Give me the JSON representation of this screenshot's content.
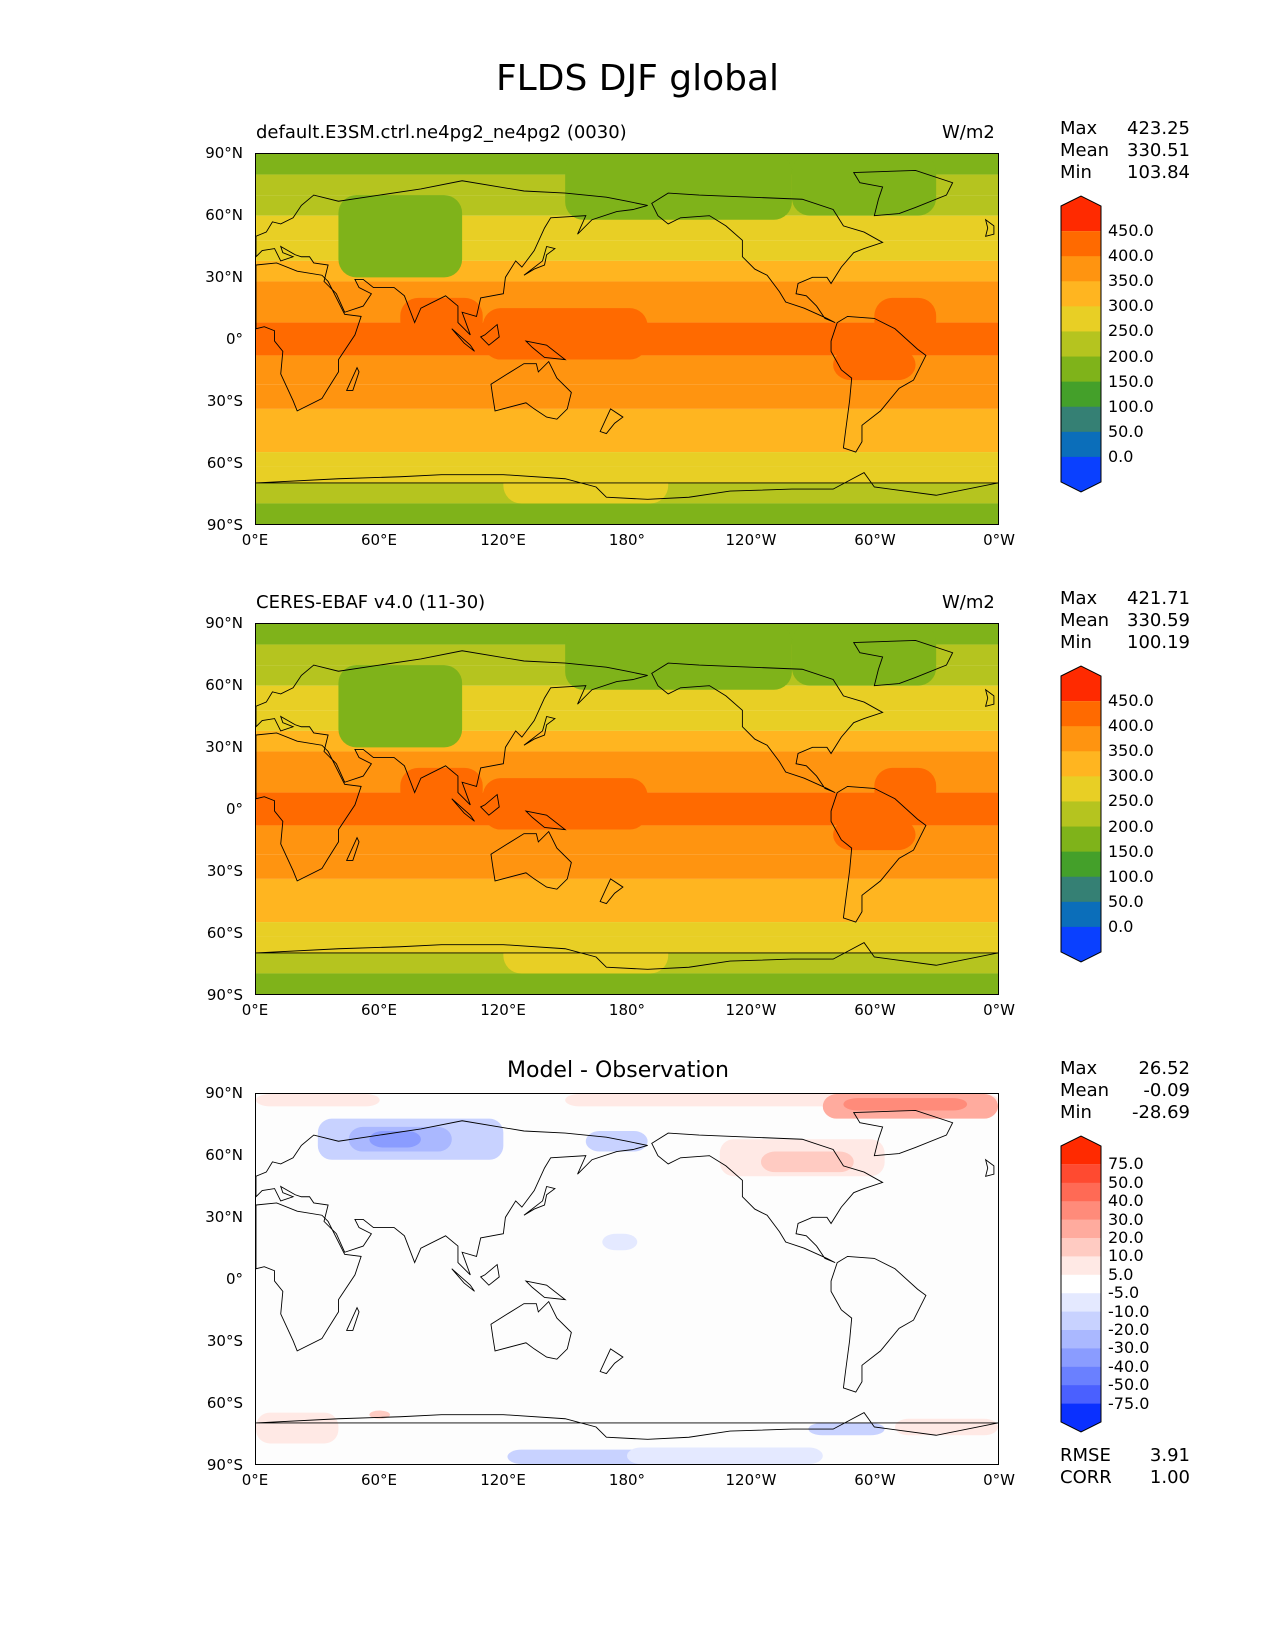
{
  "figure_title": "FLDS DJF global",
  "panels": [
    {
      "title": "default.E3SM.ctrl.ne4pg2_ne4pg2 (0030)",
      "units": "W/m2",
      "stats": {
        "max_label": "Max",
        "max": "423.25",
        "mean_label": "Mean",
        "mean": "330.51",
        "min_label": "Min",
        "min": "103.84"
      }
    },
    {
      "title": "CERES-EBAF v4.0 (11-30)",
      "units": "W/m2",
      "stats": {
        "max_label": "Max",
        "max": "421.71",
        "mean_label": "Mean",
        "mean": "330.59",
        "min_label": "Min",
        "min": "100.19"
      }
    },
    {
      "title": "Model - Observation",
      "units": "",
      "stats": {
        "max_label": "Max",
        "max": "26.52",
        "mean_label": "Mean",
        "mean": "-0.09",
        "min_label": "Min",
        "min": "-28.69"
      },
      "rmse_label": "RMSE",
      "rmse": "3.91",
      "corr_label": "CORR",
      "corr": "1.00"
    }
  ],
  "lat_ticks": [
    "90°N",
    "60°N",
    "30°N",
    "0°",
    "30°S",
    "60°S",
    "90°S"
  ],
  "lon_ticks": [
    "0°E",
    "60°E",
    "120°E",
    "180°",
    "120°W",
    "60°W",
    "0°W"
  ],
  "colorbar_abs": {
    "labels": [
      "450.0",
      "400.0",
      "350.0",
      "300.0",
      "250.0",
      "200.0",
      "150.0",
      "100.0",
      "50.0",
      "0.0"
    ],
    "colors": [
      "#ff2a00",
      "#ff6a00",
      "#ff9410",
      "#ffb520",
      "#e8cf25",
      "#b5c41f",
      "#7fb31a",
      "#44a02a",
      "#358074",
      "#0b6eba",
      "#0a40ff"
    ]
  },
  "colorbar_diff": {
    "labels": [
      "75.0",
      "50.0",
      "40.0",
      "30.0",
      "20.0",
      "10.0",
      "5.0",
      "-5.0",
      "-10.0",
      "-20.0",
      "-30.0",
      "-40.0",
      "-50.0",
      "-75.0"
    ],
    "colors": [
      "#ff2a00",
      "#ff4a30",
      "#ff6a55",
      "#ff8b7a",
      "#ffab9e",
      "#ffcbc2",
      "#ffe9e5",
      "#ffffff",
      "#e4e9ff",
      "#c8d2ff",
      "#aab8ff",
      "#8a9cff",
      "#6a80ff",
      "#4a60ff",
      "#0a30ff"
    ]
  },
  "chart_data": [
    {
      "type": "heatmap",
      "title": "default.E3SM.ctrl.ne4pg2_ne4pg2 (0030)",
      "units": "W/m2",
      "x_range": [
        0,
        360
      ],
      "y_range": [
        -90,
        90
      ],
      "levels": [
        0,
        50,
        100,
        150,
        200,
        250,
        300,
        350,
        400,
        450
      ],
      "max": 423.25,
      "mean": 330.51,
      "min": 103.84,
      "lat_band_values": [
        {
          "lat": 80,
          "value": 190
        },
        {
          "lat": 60,
          "value": 230
        },
        {
          "lat": 40,
          "value": 290
        },
        {
          "lat": 20,
          "value": 360
        },
        {
          "lat": 0,
          "value": 405
        },
        {
          "lat": -20,
          "value": 390
        },
        {
          "lat": -40,
          "value": 330
        },
        {
          "lat": -60,
          "value": 280
        },
        {
          "lat": -80,
          "value": 170
        }
      ]
    },
    {
      "type": "heatmap",
      "title": "CERES-EBAF v4.0 (11-30)",
      "units": "W/m2",
      "x_range": [
        0,
        360
      ],
      "y_range": [
        -90,
        90
      ],
      "levels": [
        0,
        50,
        100,
        150,
        200,
        250,
        300,
        350,
        400,
        450
      ],
      "max": 421.71,
      "mean": 330.59,
      "min": 100.19,
      "lat_band_values": [
        {
          "lat": 80,
          "value": 190
        },
        {
          "lat": 60,
          "value": 230
        },
        {
          "lat": 40,
          "value": 290
        },
        {
          "lat": 20,
          "value": 360
        },
        {
          "lat": 0,
          "value": 405
        },
        {
          "lat": -20,
          "value": 390
        },
        {
          "lat": -40,
          "value": 330
        },
        {
          "lat": -60,
          "value": 280
        },
        {
          "lat": -80,
          "value": 170
        }
      ]
    },
    {
      "type": "heatmap",
      "title": "Model - Observation",
      "x_range": [
        0,
        360
      ],
      "y_range": [
        -90,
        90
      ],
      "levels": [
        -75,
        -50,
        -40,
        -30,
        -20,
        -10,
        -5,
        5,
        10,
        20,
        30,
        40,
        50,
        75
      ],
      "max": 26.52,
      "mean": -0.09,
      "min": -28.69,
      "rmse": 3.91,
      "corr": 1.0
    }
  ]
}
